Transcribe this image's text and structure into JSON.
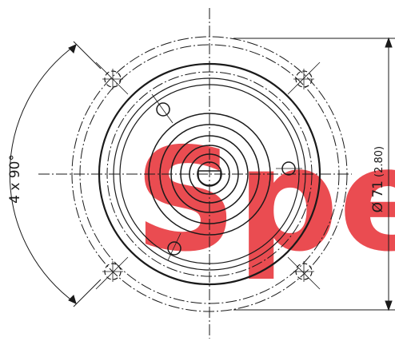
{
  "watermark": {
    "text": "Spe",
    "color": "#e8393f"
  },
  "annotations": {
    "angular_pattern": "4 x 90°",
    "diameter_label": "Ø 71",
    "diameter_inch": "(2.80)"
  },
  "colors": {
    "line": "#1a1a1a",
    "background": "#ffffff"
  }
}
